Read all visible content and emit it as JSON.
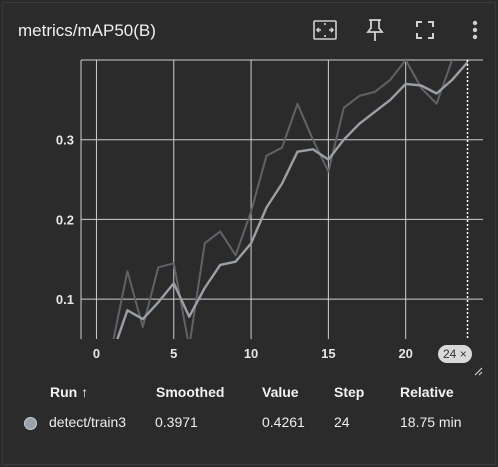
{
  "title": "metrics/mAP50(B)",
  "toolbar": {
    "icons": [
      "fit-domain-icon",
      "pin-icon",
      "fullscreen-icon",
      "more-vert-icon"
    ]
  },
  "chart_data": {
    "type": "line",
    "x_ticks": [
      "0",
      "5",
      "10",
      "15",
      "20"
    ],
    "x_tick_values": [
      0,
      5,
      10,
      15,
      20
    ],
    "y_ticks": [
      "0.1",
      "0.2",
      "0.3"
    ],
    "y_tick_values": [
      0.1,
      0.2,
      0.3
    ],
    "xlim": [
      -1.0,
      25.0
    ],
    "ylim": [
      0.05,
      0.4
    ],
    "grid": true,
    "series": [
      {
        "role": "raw",
        "color": "#5f6368",
        "x": [
          0,
          1,
          2,
          3,
          4,
          5,
          6,
          7,
          8,
          9,
          10,
          11,
          12,
          13,
          14,
          15,
          16,
          17,
          18,
          19,
          20,
          21,
          22,
          23,
          24
        ],
        "values": [
          0.02,
          0.04,
          0.135,
          0.065,
          0.14,
          0.145,
          0.04,
          0.17,
          0.185,
          0.155,
          0.21,
          0.28,
          0.29,
          0.345,
          0.3,
          0.26,
          0.34,
          0.355,
          0.36,
          0.375,
          0.4,
          0.365,
          0.345,
          0.4,
          0.4261
        ]
      },
      {
        "role": "smoothed",
        "color": "#9aa0a6",
        "x": [
          0,
          1,
          2,
          3,
          4,
          5,
          6,
          7,
          8,
          9,
          10,
          11,
          12,
          13,
          14,
          15,
          16,
          17,
          18,
          19,
          20,
          21,
          22,
          23,
          24
        ],
        "values": [
          0.02,
          0.03,
          0.086,
          0.075,
          0.096,
          0.12,
          0.078,
          0.114,
          0.143,
          0.147,
          0.17,
          0.215,
          0.245,
          0.285,
          0.288,
          0.275,
          0.3,
          0.32,
          0.335,
          0.35,
          0.37,
          0.368,
          0.358,
          0.375,
          0.3971
        ]
      }
    ],
    "hover_step": 24
  },
  "hover_badge": {
    "step": "24",
    "close": "×"
  },
  "table": {
    "headers": {
      "run": "Run ↑",
      "smoothed": "Smoothed",
      "value": "Value",
      "step": "Step",
      "relative": "Relative"
    },
    "row": {
      "run": "detect/train3",
      "smoothed": "0.3971",
      "value": "0.4261",
      "step": "24",
      "relative": "18.75 min",
      "color": "#9aa3ad"
    }
  }
}
